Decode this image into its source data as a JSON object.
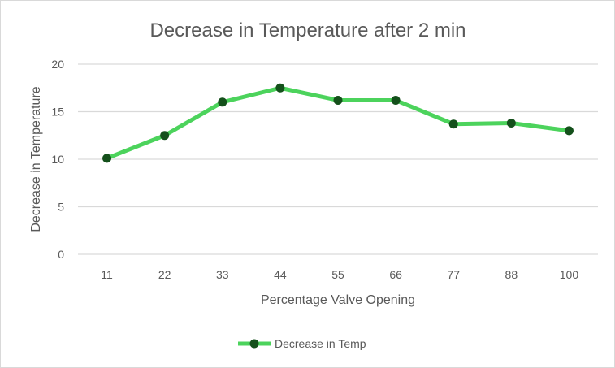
{
  "chart_data": {
    "type": "line",
    "title": "Decrease in Temperature after 2 min",
    "xlabel": "Percentage Valve Opening",
    "ylabel": "Decrease in Temperature",
    "categories": [
      "11",
      "22",
      "33",
      "44",
      "55",
      "66",
      "77",
      "88",
      "100"
    ],
    "series": [
      {
        "name": "Decrease in Temp",
        "values": [
          10.1,
          12.5,
          16.0,
          17.5,
          16.2,
          16.2,
          13.7,
          13.8,
          13.0
        ]
      }
    ],
    "ylim": [
      0,
      20
    ],
    "yticks": [
      "0",
      "5",
      "10",
      "15",
      "20"
    ],
    "grid": true,
    "legend": "bottom",
    "colors": {
      "line": "#4cd35c",
      "marker": "#14501b",
      "grid": "#d9d9d9"
    }
  }
}
